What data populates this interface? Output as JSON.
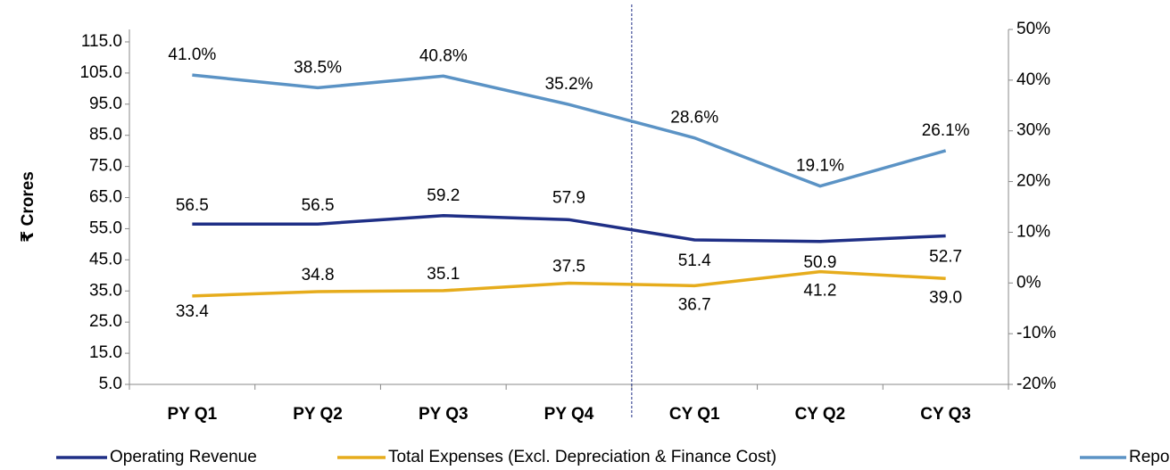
{
  "chart_data": {
    "type": "line",
    "y_axis_label": "₹ Crores",
    "categories": [
      "PY Q1",
      "PY Q2",
      "PY Q3",
      "PY Q4",
      "CY Q1",
      "CY Q2",
      "CY Q3"
    ],
    "series": [
      {
        "name": "Operating Revenue",
        "color": "#1f2f86",
        "values": [
          56.5,
          56.5,
          59.2,
          57.9,
          51.4,
          50.9,
          52.7
        ]
      },
      {
        "name": "Total Expenses (Excl. Depreciation & Finance Cost)",
        "color": "#e6ac1c",
        "values": [
          33.4,
          34.8,
          35.1,
          37.5,
          36.7,
          41.2,
          39.0
        ],
        "value_labels": [
          "33.4",
          "34.8",
          "35.1",
          "37.5",
          "36.7",
          "41.2",
          "39.0"
        ]
      },
      {
        "name": "Reported margins %",
        "color": "#5b93c5",
        "axis": "y2",
        "values": [
          41.0,
          38.5,
          40.8,
          35.2,
          28.6,
          19.1,
          26.1
        ],
        "value_labels": [
          "41.0%",
          "38.5%",
          "40.8%",
          "35.2%",
          "28.6%",
          "19.1%",
          "26.1%"
        ]
      }
    ],
    "ylim": [
      5,
      119
    ],
    "yticks": [
      {
        "value": 5,
        "label": "5.0"
      },
      {
        "value": 15,
        "label": "15.0"
      },
      {
        "value": 25,
        "label": "25.0"
      },
      {
        "value": 35,
        "label": "35.0"
      },
      {
        "value": 45,
        "label": "45.0"
      },
      {
        "value": 55,
        "label": "55.0"
      },
      {
        "value": 65,
        "label": "65.0"
      },
      {
        "value": 75,
        "label": "75.0"
      },
      {
        "value": 85,
        "label": "85.0"
      },
      {
        "value": 95,
        "label": "95.0"
      },
      {
        "value": 105,
        "label": "105.0"
      },
      {
        "value": 115,
        "label": "115.0"
      }
    ],
    "y2lim": [
      -20,
      50
    ],
    "y2ticks": [
      {
        "value": -20,
        "label": "-20%"
      },
      {
        "value": -10,
        "label": "-10%"
      },
      {
        "value": 0,
        "label": "0%"
      },
      {
        "value": 10,
        "label": "10%"
      },
      {
        "value": 20,
        "label": "20%"
      },
      {
        "value": 30,
        "label": "30%"
      },
      {
        "value": 40,
        "label": "40%"
      },
      {
        "value": 50,
        "label": "50%"
      }
    ],
    "legend": "bottom",
    "grid": false
  }
}
